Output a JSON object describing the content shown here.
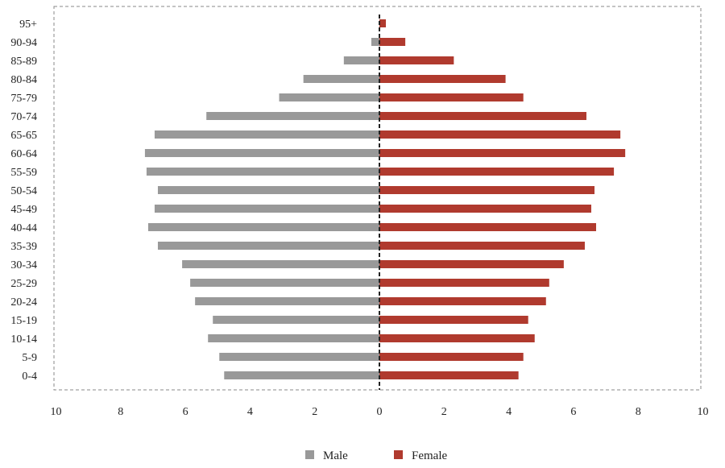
{
  "chart_data": {
    "type": "bar",
    "orientation": "horizontal",
    "subtype": "population-pyramid",
    "title": "",
    "xlabel": "",
    "ylabel": "",
    "categories": [
      "0-4",
      "5-9",
      "10-14",
      "15-19",
      "20-24",
      "25-29",
      "30-34",
      "35-39",
      "40-44",
      "45-49",
      "50-54",
      "55-59",
      "60-64",
      "65-65",
      "70-74",
      "75-79",
      "80-84",
      "85-89",
      "90-94",
      "95+"
    ],
    "series": [
      {
        "name": "Male",
        "color": "#999999",
        "side": "left",
        "values": [
          4.8,
          4.95,
          5.3,
          5.15,
          5.7,
          5.85,
          6.1,
          6.85,
          7.15,
          6.95,
          6.85,
          7.2,
          7.25,
          6.95,
          5.35,
          3.1,
          2.35,
          1.1,
          0.25,
          0.0
        ]
      },
      {
        "name": "Female",
        "color": "#B03A2E",
        "side": "right",
        "values": [
          4.3,
          4.45,
          4.8,
          4.6,
          5.15,
          5.25,
          5.7,
          6.35,
          6.7,
          6.55,
          6.65,
          7.25,
          7.6,
          7.45,
          6.4,
          4.45,
          3.9,
          2.3,
          0.8,
          0.2
        ]
      }
    ],
    "xlim": [
      -10,
      10
    ],
    "xticks": [
      -10,
      -8,
      -6,
      -4,
      -2,
      0,
      2,
      4,
      6,
      8,
      10
    ],
    "xtick_labels": [
      "10",
      "8",
      "6",
      "4",
      "2",
      "0",
      "2",
      "4",
      "6",
      "8",
      "10"
    ],
    "grid": false,
    "legend_position": "bottom-center",
    "center_line": "dashed",
    "plot_border": "dashed"
  }
}
